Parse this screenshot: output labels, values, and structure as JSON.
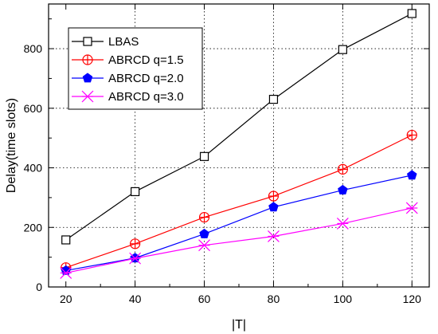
{
  "chart_data": {
    "type": "line",
    "xlabel": "|T|",
    "ylabel": "Delay(time slots)",
    "x": [
      20,
      40,
      60,
      80,
      100,
      120
    ],
    "xlim": [
      15,
      125
    ],
    "ylim": [
      0,
      950
    ],
    "xticks": [
      20,
      40,
      60,
      80,
      100,
      120
    ],
    "yticks": [
      0,
      200,
      400,
      600,
      800
    ],
    "grid": true,
    "legend_position": "top-left",
    "series": [
      {
        "name": "LBAS",
        "color": "#000000",
        "marker": "square",
        "values": [
          158,
          320,
          438,
          630,
          797,
          918
        ]
      },
      {
        "name": "ABRCD q=1.5",
        "color": "#ff0000",
        "marker": "circle-plus",
        "values": [
          65,
          145,
          234,
          305,
          395,
          510
        ]
      },
      {
        "name": "ABRCD q=2.0",
        "color": "#0000ff",
        "marker": "pentagon",
        "values": [
          55,
          97,
          178,
          268,
          325,
          375
        ]
      },
      {
        "name": "ABRCD q=3.0",
        "color": "#ff00ff",
        "marker": "star-x",
        "values": [
          47,
          96,
          140,
          170,
          213,
          265
        ]
      }
    ]
  }
}
